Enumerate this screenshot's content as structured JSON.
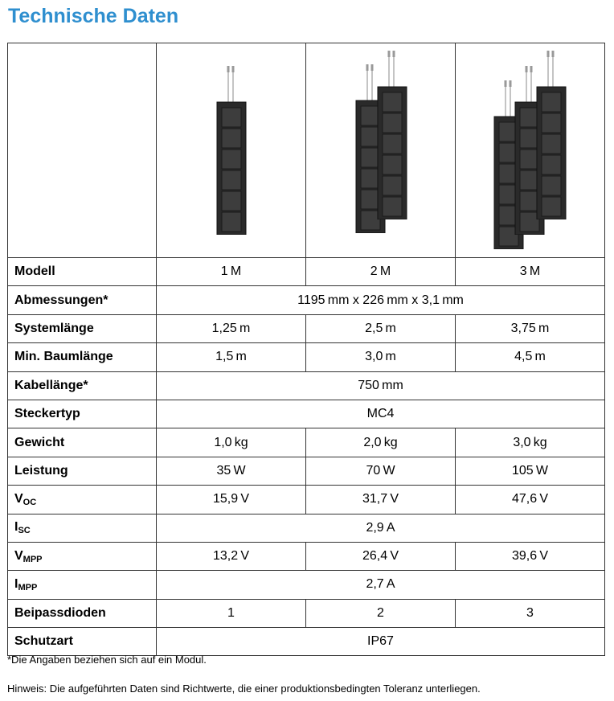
{
  "header": {
    "title": "Technische Daten"
  },
  "table": {
    "rows": [
      {
        "label": "Modell",
        "cells": [
          "1 M",
          "2 M",
          "3 M"
        ]
      },
      {
        "label": "Abmessungen*",
        "cells": [
          "1195 mm x 226 mm x 3,1 mm"
        ]
      },
      {
        "label": "Systemlänge",
        "cells": [
          "1,25 m",
          "2,5 m",
          "3,75 m"
        ]
      },
      {
        "label": "Min. Baumlänge",
        "cells": [
          "1,5 m",
          "3,0 m",
          "4,5 m"
        ]
      },
      {
        "label": "Kabellänge*",
        "cells": [
          "750 mm"
        ]
      },
      {
        "label": "Steckertyp",
        "cells": [
          "MC4"
        ]
      },
      {
        "label": "Gewicht",
        "cells": [
          "1,0 kg",
          "2,0 kg",
          "3,0 kg"
        ]
      },
      {
        "label": "Leistung",
        "cells": [
          "35 W",
          "70 W",
          "105 W"
        ]
      },
      {
        "label": "V",
        "label_sub": "OC",
        "cells": [
          "15,9 V",
          "31,7 V",
          "47,6 V"
        ]
      },
      {
        "label": "I",
        "label_sub": "SC",
        "cells": [
          "2,9 A"
        ]
      },
      {
        "label": "V",
        "label_sub": "MPP",
        "cells": [
          "13,2 V",
          "26,4 V",
          "39,6 V"
        ]
      },
      {
        "label": "I",
        "label_sub": "MPP",
        "cells": [
          "2,7 A"
        ]
      },
      {
        "label": "Beipassdioden",
        "cells": [
          "1",
          "2",
          "3"
        ]
      },
      {
        "label": "Schutzart",
        "cells": [
          "IP67"
        ]
      }
    ]
  },
  "footnote": "*Die Angaben beziehen sich auf ein Modul.",
  "note": "Hinweis: Die aufgeführten Daten sind Richtwerte, die einer produktionsbedingten Toleranz unterliegen."
}
